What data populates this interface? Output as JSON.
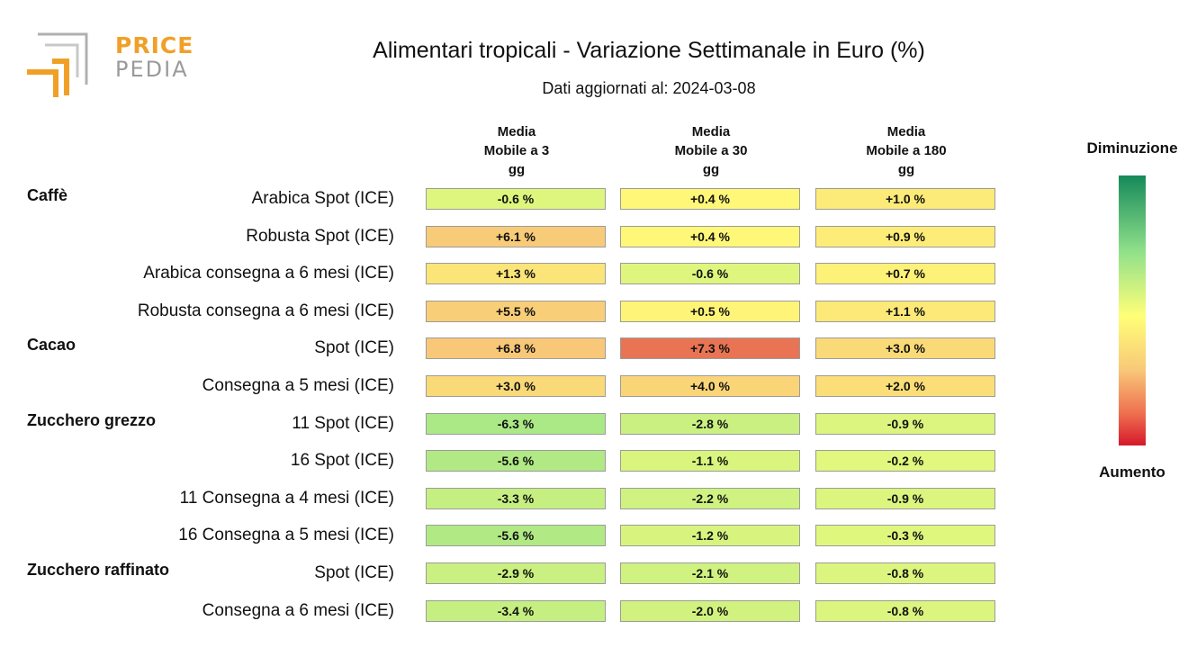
{
  "logo": {
    "line1": "PRICE",
    "line2": "PEDIA"
  },
  "chart_data": {
    "type": "heatmap",
    "title": "Alimentari tropicali - Variazione Settimanale in Euro (%)",
    "subtitle": "Dati aggiornati al: 2024-03-08",
    "columns": [
      [
        "Media",
        "Mobile a 3",
        "gg"
      ],
      [
        "Media",
        "Mobile a 30",
        "gg"
      ],
      [
        "Media",
        "Mobile a 180",
        "gg"
      ]
    ],
    "groups": [
      "Caffè",
      "Cacao",
      "Zucchero grezzo",
      "Zucchero raffinato"
    ],
    "rows": [
      {
        "group": "Caffè",
        "label": "Arabica Spot (ICE)",
        "values": [
          -0.6,
          0.4,
          1.0
        ],
        "texts": [
          "-0.6 %",
          "+0.4 %",
          "+1.0 %"
        ]
      },
      {
        "group": "",
        "label": "Robusta Spot (ICE)",
        "values": [
          6.1,
          0.4,
          0.9
        ],
        "texts": [
          "+6.1 %",
          "+0.4 %",
          "+0.9 %"
        ]
      },
      {
        "group": "",
        "label": "Arabica consegna a 6 mesi (ICE)",
        "values": [
          1.3,
          -0.6,
          0.7
        ],
        "texts": [
          "+1.3 %",
          "-0.6 %",
          "+0.7 %"
        ]
      },
      {
        "group": "",
        "label": "Robusta consegna a 6 mesi (ICE)",
        "values": [
          5.5,
          0.5,
          1.1
        ],
        "texts": [
          "+5.5 %",
          "+0.5 %",
          "+1.1 %"
        ]
      },
      {
        "group": "Cacao",
        "label": "Spot (ICE)",
        "values": [
          6.8,
          7.3,
          3.0
        ],
        "texts": [
          "+6.8 %",
          "+7.3 %",
          "+3.0 %"
        ]
      },
      {
        "group": "",
        "label": "Consegna a 5 mesi (ICE)",
        "values": [
          3.0,
          4.0,
          2.0
        ],
        "texts": [
          "+3.0 %",
          "+4.0 %",
          "+2.0 %"
        ]
      },
      {
        "group": "Zucchero grezzo",
        "label": "11 Spot (ICE)",
        "values": [
          -6.3,
          -2.8,
          -0.9
        ],
        "texts": [
          "-6.3 %",
          "-2.8 %",
          "-0.9 %"
        ]
      },
      {
        "group": "",
        "label": "16 Spot (ICE)",
        "values": [
          -5.6,
          -1.1,
          -0.2
        ],
        "texts": [
          "-5.6 %",
          "-1.1 %",
          "-0.2 %"
        ]
      },
      {
        "group": "",
        "label": "11 Consegna a 4 mesi (ICE)",
        "values": [
          -3.3,
          -2.2,
          -0.9
        ],
        "texts": [
          "-3.3 %",
          "-2.2 %",
          "-0.9 %"
        ]
      },
      {
        "group": "",
        "label": "16 Consegna a 5 mesi (ICE)",
        "values": [
          -5.6,
          -1.2,
          -0.3
        ],
        "texts": [
          "-5.6 %",
          "-1.2 %",
          "-0.3 %"
        ]
      },
      {
        "group": "Zucchero raffinato",
        "label": "Spot (ICE)",
        "values": [
          -2.9,
          -2.1,
          -0.8
        ],
        "texts": [
          "-2.9 %",
          "-2.1 %",
          "-0.8 %"
        ]
      },
      {
        "group": "",
        "label": "Consegna a 6 mesi (ICE)",
        "values": [
          -3.4,
          -2.0,
          -0.8
        ],
        "texts": [
          "-3.4 %",
          "-2.0 %",
          "-0.8 %"
        ]
      }
    ],
    "legend": {
      "top": "Diminuzione",
      "bottom": "Aumento"
    },
    "colors": {
      "decrease_strong": "#15895a",
      "decrease_light": "#8fe08a",
      "neutral": "#ffff78",
      "increase_light": "#f8c878",
      "increase_strong": "#d6182a",
      "cell_border": "#9c9c9c"
    }
  }
}
